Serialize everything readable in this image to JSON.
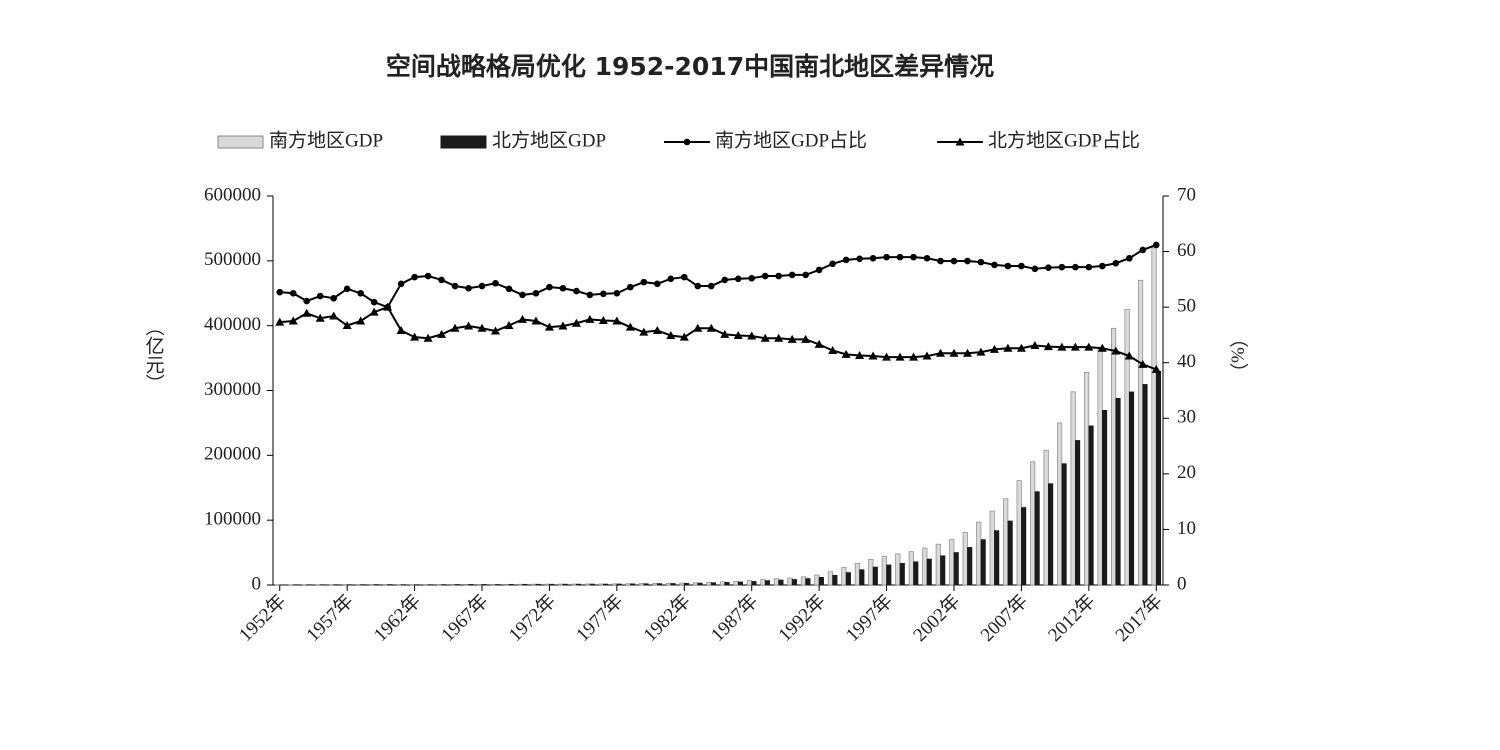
{
  "chart_data": {
    "type": "bar",
    "title": "空间战略格局优化 1952-2017中国南北地区差异情况",
    "y_label": "（亿元）",
    "y2_label": "（%）",
    "categories": [
      "1952年",
      null,
      null,
      null,
      null,
      "1957年",
      null,
      null,
      null,
      null,
      "1962年",
      null,
      null,
      null,
      null,
      "1967年",
      null,
      null,
      null,
      null,
      "1972年",
      null,
      null,
      null,
      null,
      "1977年",
      null,
      null,
      null,
      null,
      "1982年",
      null,
      null,
      null,
      null,
      "1987年",
      null,
      null,
      null,
      null,
      "1992年",
      null,
      null,
      null,
      null,
      "1997年",
      null,
      null,
      null,
      null,
      "2002年",
      null,
      null,
      null,
      null,
      "2007年",
      null,
      null,
      null,
      null,
      "2012年",
      null,
      null,
      null,
      null,
      "2017年"
    ],
    "ylim": [
      0,
      600000
    ],
    "yticks": [
      0,
      100000,
      200000,
      300000,
      400000,
      500000,
      600000
    ],
    "y2lim": [
      0,
      70
    ],
    "y2ticks": [
      0,
      10,
      20,
      30,
      40,
      50,
      60,
      70
    ],
    "legend": "top",
    "series": [
      {
        "name": "南方地区GDP",
        "type": "bar",
        "color": "#d9d9d9",
        "values": [
          360,
          440,
          460,
          480,
          550,
          580,
          700,
          740,
          730,
          660,
          640,
          680,
          790,
          930,
          1000,
          960,
          920,
          1040,
          1190,
          1280,
          1340,
          1450,
          1480,
          1600,
          1570,
          1720,
          2000,
          2300,
          2550,
          2800,
          3100,
          3400,
          4100,
          5000,
          5700,
          6800,
          8500,
          9600,
          10700,
          12500,
          15500,
          20500,
          27000,
          33500,
          39500,
          44500,
          48000,
          51500,
          57000,
          63000,
          70000,
          81000,
          97000,
          114000,
          133000,
          161000,
          190000,
          208000,
          250000,
          298000,
          328000,
          363000,
          396000,
          425000,
          470000,
          520000
        ]
      },
      {
        "name": "北方地区GDP",
        "type": "bar",
        "color": "#1a1a1a",
        "values": [
          323,
          398,
          440,
          443,
          516,
          508,
          633,
          714,
          730,
          558,
          515,
          543,
          649,
          799,
          873,
          824,
          774,
          911,
          1090,
          1158,
          1160,
          1265,
          1318,
          1465,
          1426,
          1556,
          1731,
          1920,
          2155,
          2282,
          2496,
          2920,
          3521,
          4107,
          4645,
          5519,
          6788,
          7666,
          8476,
          9901,
          11837,
          14967,
          19154,
          23570,
          27677,
          30924,
          33356,
          35788,
          39939,
          45062,
          50069,
          57937,
          69953,
          83917,
          98707,
          119488,
          143919,
          156273,
          187063,
          222979,
          245427,
          269404,
          287938,
          297789,
          309436,
          329673
        ]
      },
      {
        "name": "南方地区GDP占比",
        "type": "line",
        "marker": "circle",
        "axis": "y2",
        "color": "#000000",
        "values": [
          52.7,
          52.5,
          51.1,
          52.0,
          51.6,
          53.3,
          52.5,
          50.9,
          50.0,
          54.2,
          55.4,
          55.6,
          54.9,
          53.8,
          53.4,
          53.8,
          54.3,
          53.3,
          52.2,
          52.5,
          53.6,
          53.4,
          52.9,
          52.2,
          52.4,
          52.5,
          53.6,
          54.5,
          54.2,
          55.1,
          55.4,
          53.8,
          53.8,
          54.9,
          55.1,
          55.2,
          55.6,
          55.6,
          55.8,
          55.8,
          56.7,
          57.8,
          58.5,
          58.7,
          58.8,
          59.0,
          59.0,
          59.0,
          58.8,
          58.3,
          58.3,
          58.3,
          58.1,
          57.6,
          57.4,
          57.4,
          56.9,
          57.1,
          57.2,
          57.2,
          57.2,
          57.4,
          57.9,
          58.8,
          60.3,
          61.2
        ]
      },
      {
        "name": "北方地区GDP占比",
        "type": "line",
        "marker": "triangle",
        "axis": "y2",
        "color": "#000000",
        "values": [
          47.3,
          47.5,
          48.9,
          48.0,
          48.4,
          46.7,
          47.5,
          49.1,
          50.0,
          45.8,
          44.6,
          44.4,
          45.1,
          46.2,
          46.6,
          46.2,
          45.7,
          46.7,
          47.8,
          47.5,
          46.4,
          46.6,
          47.1,
          47.8,
          47.6,
          47.5,
          46.4,
          45.5,
          45.8,
          44.9,
          44.6,
          46.2,
          46.2,
          45.1,
          44.9,
          44.8,
          44.4,
          44.4,
          44.2,
          44.2,
          43.3,
          42.2,
          41.5,
          41.3,
          41.2,
          41.0,
          41.0,
          41.0,
          41.2,
          41.7,
          41.7,
          41.7,
          41.9,
          42.4,
          42.6,
          42.6,
          43.1,
          42.9,
          42.8,
          42.8,
          42.8,
          42.6,
          42.1,
          41.2,
          39.7,
          38.8
        ]
      }
    ]
  }
}
